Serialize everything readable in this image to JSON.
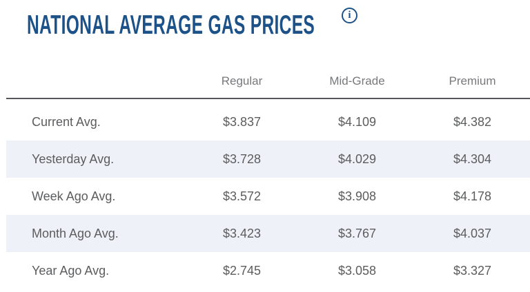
{
  "header": {
    "title": "NATIONAL AVERAGE GAS PRICES",
    "info_icon": {
      "glyph": "i",
      "name": "info-icon"
    }
  },
  "colors": {
    "title_navy": "#1d5288",
    "header_gray": "#77787b",
    "body_gray": "#5b5c5e",
    "row_stripe": "#eef2f8",
    "rule_gray": "#56575a"
  },
  "table": {
    "columns": [
      "Regular",
      "Mid-Grade",
      "Premium"
    ],
    "rows": [
      {
        "label": "Current Avg.",
        "values": [
          "$3.837",
          "$4.109",
          "$4.382"
        ]
      },
      {
        "label": "Yesterday Avg.",
        "values": [
          "$3.728",
          "$4.029",
          "$4.304"
        ]
      },
      {
        "label": "Week Ago Avg.",
        "values": [
          "$3.572",
          "$3.908",
          "$4.178"
        ]
      },
      {
        "label": "Month Ago Avg.",
        "values": [
          "$3.423",
          "$3.767",
          "$4.037"
        ]
      },
      {
        "label": "Year Ago Avg.",
        "values": [
          "$2.745",
          "$3.058",
          "$3.327"
        ]
      }
    ]
  }
}
